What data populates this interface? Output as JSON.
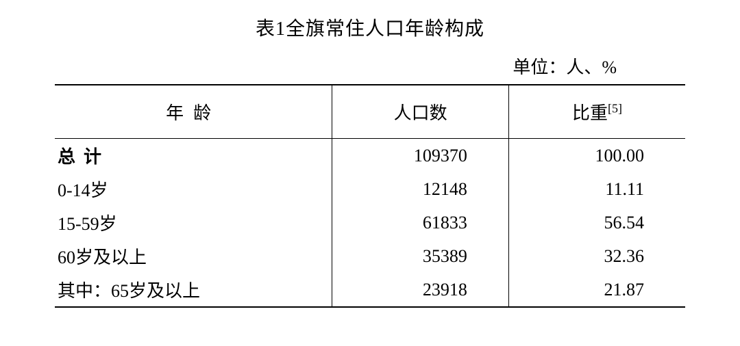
{
  "title": "表1全旗常住人口年龄构成",
  "unit_label": "单位：人、%",
  "columns": {
    "age": "年龄",
    "population": "人口数",
    "ratio_prefix": "比重",
    "ratio_sup": "[5]"
  },
  "rows": [
    {
      "age_label": "总计",
      "population": "109370",
      "ratio": "100.00",
      "bold": true,
      "indent": false
    },
    {
      "age_label": "0-14岁",
      "population": "12148",
      "ratio": "11.11",
      "bold": false,
      "indent": false
    },
    {
      "age_label": "15-59岁",
      "population": "61833",
      "ratio": "56.54",
      "bold": false,
      "indent": false
    },
    {
      "age_label": "60岁及以上",
      "population": "35389",
      "ratio": "32.36",
      "bold": false,
      "indent": false
    },
    {
      "age_label": "其中：65岁及以上",
      "population": "23918",
      "ratio": "21.87",
      "bold": false,
      "indent": true
    }
  ],
  "styling": {
    "background_color": "#ffffff",
    "text_color": "#000000",
    "border_color": "#000000",
    "title_fontsize": 28,
    "body_fontsize": 26,
    "top_bottom_border_width": 2.5,
    "inner_border_width": 1.5,
    "font_family": "SimSun"
  }
}
